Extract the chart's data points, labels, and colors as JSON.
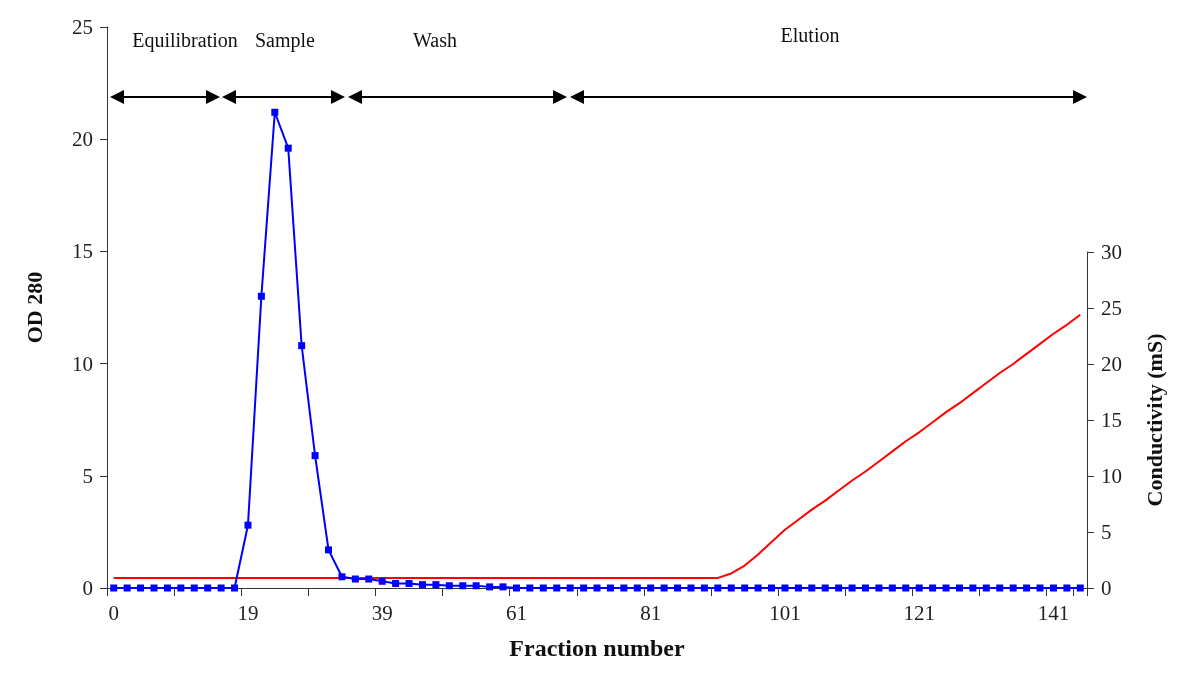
{
  "chart_data": {
    "type": "line",
    "xlabel": "Fraction number",
    "ylabel": "OD 280",
    "y2label": "Conductivity (mS)",
    "categories": [
      "0",
      null,
      null,
      null,
      null,
      null,
      null,
      null,
      null,
      null,
      "19",
      null,
      null,
      null,
      null,
      null,
      null,
      null,
      null,
      null,
      "39",
      null,
      null,
      null,
      null,
      null,
      null,
      null,
      null,
      null,
      "61",
      null,
      null,
      null,
      null,
      null,
      null,
      null,
      null,
      null,
      "81",
      null,
      null,
      null,
      null,
      null,
      null,
      null,
      null,
      null,
      "101",
      null,
      null,
      null,
      null,
      null,
      null,
      null,
      null,
      null,
      "121",
      null,
      null,
      null,
      null,
      null,
      null,
      null,
      null,
      null,
      "141",
      null,
      null
    ],
    "ylim": [
      0,
      25
    ],
    "yticks": [
      0,
      5,
      10,
      15,
      20,
      25
    ],
    "y2lim": [
      0,
      30
    ],
    "y2ticks": [
      0,
      5,
      10,
      15,
      20,
      25,
      30
    ],
    "grid": false,
    "annotations": [
      "Equilibration",
      "Sample",
      "Wash",
      "Elution"
    ],
    "series": [
      {
        "color": "#0000ff",
        "marker": "square",
        "values": [
          0,
          0,
          0,
          0,
          0,
          0,
          0,
          0,
          0,
          0,
          2.8,
          13.0,
          21.2,
          19.6,
          10.8,
          5.9,
          1.7,
          0.5,
          0.4,
          0.4,
          0.3,
          0.2,
          0.2,
          0.15,
          0.15,
          0.1,
          0.1,
          0.1,
          0.05,
          0.05,
          0,
          0,
          0,
          0,
          0,
          0,
          0,
          0,
          0,
          0,
          0,
          0,
          0,
          0,
          0,
          0,
          0,
          0,
          0,
          0,
          0,
          0,
          0,
          0,
          0,
          0,
          0,
          0,
          0,
          0,
          0,
          0,
          0,
          0,
          0,
          0,
          0,
          0,
          0,
          0,
          0,
          0,
          0
        ]
      },
      {
        "color": "#ff0000",
        "marker": "none",
        "axis": "y2",
        "values": [
          0.9,
          0.9,
          0.9,
          0.9,
          0.9,
          0.9,
          0.9,
          0.9,
          0.9,
          0.9,
          0.9,
          0.9,
          0.9,
          0.9,
          0.9,
          0.9,
          0.9,
          0.9,
          0.9,
          0.9,
          0.9,
          0.9,
          0.9,
          0.9,
          0.9,
          0.9,
          0.9,
          0.9,
          0.9,
          0.9,
          0.9,
          0.9,
          0.9,
          0.9,
          0.9,
          0.9,
          0.9,
          0.9,
          0.9,
          0.9,
          0.9,
          0.9,
          0.9,
          0.9,
          0.9,
          0.9,
          1.3,
          2.0,
          3.0,
          4.1,
          5.2,
          6.1,
          7.0,
          7.8,
          8.7,
          9.6,
          10.4,
          11.3,
          12.2,
          13.1,
          13.9,
          14.8,
          15.7,
          16.5,
          17.4,
          18.3,
          19.2,
          20.0,
          20.9,
          21.8,
          22.7,
          23.5,
          24.4
        ]
      }
    ]
  }
}
